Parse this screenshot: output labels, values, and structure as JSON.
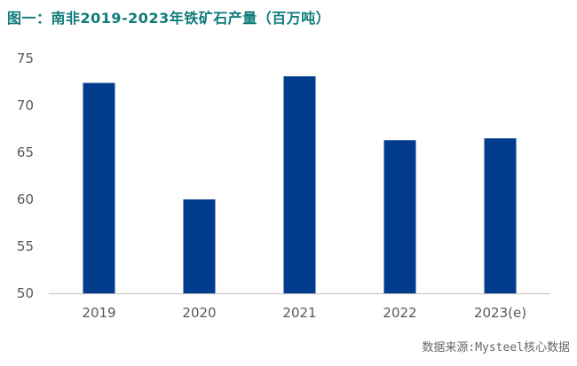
{
  "title": "图一：南非2019-2023年铁矿石产量（百万吨）",
  "source": "数据来源:Mysteel核心数据",
  "colors": {
    "title": "#0f7a7a",
    "bar": "#003b8c",
    "axis": "#bfbfbf",
    "tick_text": "#595959"
  },
  "chart_data": {
    "type": "bar",
    "title": "图一：南非2019-2023年铁矿石产量（百万吨）",
    "xlabel": "",
    "ylabel": "",
    "categories": [
      "2019",
      "2020",
      "2021",
      "2022",
      "2023(e)"
    ],
    "values": [
      72.4,
      60.0,
      73.1,
      66.3,
      66.5
    ],
    "ylim": [
      50,
      75
    ],
    "yticks": [
      50,
      55,
      60,
      65,
      70,
      75
    ],
    "grid": false,
    "legend": "none"
  }
}
